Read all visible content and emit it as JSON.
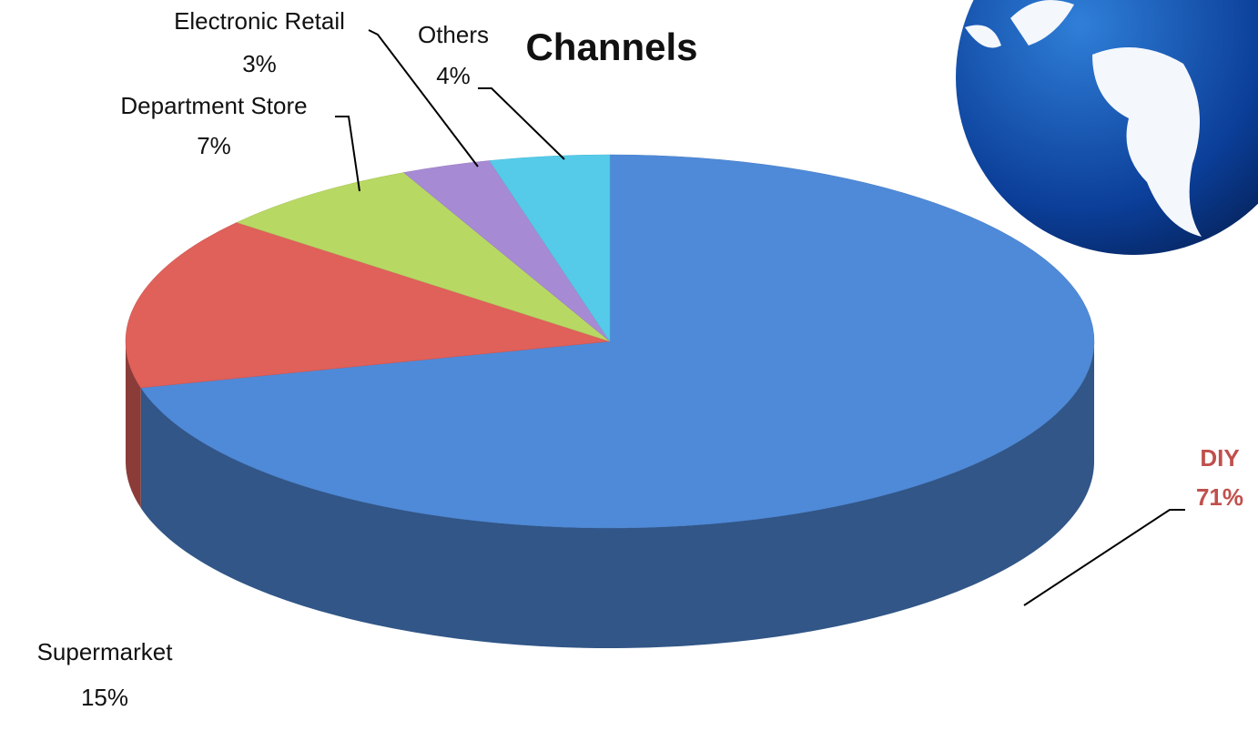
{
  "chart_data": {
    "type": "pie",
    "title": "Channels",
    "categories": [
      "DIY",
      "Supermarket",
      "Department Store",
      "Electronic Retail",
      "Others"
    ],
    "values": [
      71,
      15,
      7,
      3,
      4
    ],
    "value_labels": [
      "71%",
      "15%",
      "7%",
      "3%",
      "4%"
    ],
    "colors": [
      "#4f8ad9",
      "#e0605a",
      "#b8d864",
      "#a78ad4",
      "#56cbe9"
    ]
  }
}
